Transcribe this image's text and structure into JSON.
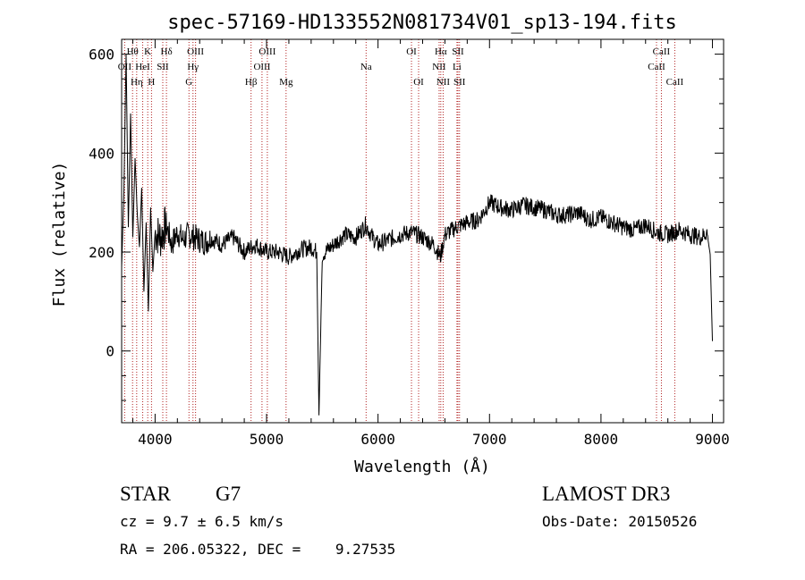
{
  "chart_data": {
    "type": "line",
    "title": "spec-57169-HD133552N081734V01_sp13-194.fits",
    "xlabel": "Wavelength (Å)",
    "ylabel": "Flux (relative)",
    "xlim": [
      3700,
      9100
    ],
    "ylim": [
      -145,
      630
    ],
    "xticks": [
      4000,
      5000,
      6000,
      7000,
      8000,
      9000
    ],
    "yticks": [
      0,
      200,
      400,
      600
    ],
    "grid": false,
    "legend": "none",
    "line_color": "#000000",
    "marker_color": "#b22222",
    "series": [
      {
        "name": "flux",
        "x": [
          3700,
          3720,
          3740,
          3760,
          3780,
          3800,
          3820,
          3840,
          3860,
          3880,
          3900,
          3920,
          3940,
          3960,
          3980,
          4000,
          4050,
          4100,
          4150,
          4200,
          4250,
          4300,
          4350,
          4400,
          4450,
          4500,
          4600,
          4700,
          4800,
          4860,
          4900,
          5000,
          5100,
          5200,
          5300,
          5400,
          5450,
          5470,
          5500,
          5600,
          5700,
          5800,
          5890,
          5950,
          6000,
          6100,
          6200,
          6300,
          6400,
          6500,
          6560,
          6600,
          6700,
          6800,
          6900,
          7000,
          7100,
          7200,
          7300,
          7400,
          7500,
          7600,
          7700,
          7800,
          7900,
          8000,
          8100,
          8200,
          8300,
          8400,
          8500,
          8600,
          8700,
          8800,
          8900,
          8950,
          8980,
          9000
        ],
        "y": [
          170,
          320,
          600,
          250,
          480,
          230,
          390,
          280,
          210,
          330,
          120,
          260,
          80,
          290,
          160,
          240,
          230,
          255,
          215,
          240,
          225,
          235,
          230,
          225,
          220,
          228,
          215,
          230,
          200,
          210,
          215,
          200,
          200,
          190,
          205,
          210,
          200,
          -130,
          195,
          215,
          235,
          230,
          255,
          230,
          215,
          225,
          235,
          240,
          230,
          215,
          190,
          235,
          250,
          260,
          265,
          300,
          290,
          285,
          295,
          290,
          285,
          275,
          275,
          280,
          265,
          270,
          260,
          250,
          245,
          255,
          240,
          235,
          245,
          235,
          230,
          240,
          195,
          20
        ]
      }
    ],
    "lines": [
      {
        "label": "OII",
        "wavelength": 3727,
        "row": 2
      },
      {
        "label": "Hθ",
        "wavelength": 3798,
        "row": 1
      },
      {
        "label": "Hη",
        "wavelength": 3835,
        "row": 3
      },
      {
        "label": "HeI",
        "wavelength": 3889,
        "row": 2
      },
      {
        "label": "K",
        "wavelength": 3934,
        "row": 1
      },
      {
        "label": "H",
        "wavelength": 3968,
        "row": 3
      },
      {
        "label": "SII",
        "wavelength": 4069,
        "row": 2
      },
      {
        "label": "Hδ",
        "wavelength": 4102,
        "row": 1
      },
      {
        "label": "G",
        "wavelength": 4304,
        "row": 3
      },
      {
        "label": "Hγ",
        "wavelength": 4340,
        "row": 2
      },
      {
        "label": "OIII",
        "wavelength": 4363,
        "row": 1
      },
      {
        "label": "Hβ",
        "wavelength": 4861,
        "row": 3
      },
      {
        "label": "OIII",
        "wavelength": 4959,
        "row": 2
      },
      {
        "label": "OIII",
        "wavelength": 5007,
        "row": 1
      },
      {
        "label": "Mg",
        "wavelength": 5175,
        "row": 3
      },
      {
        "label": "Na",
        "wavelength": 5893,
        "row": 2
      },
      {
        "label": "OI",
        "wavelength": 6300,
        "row": 1
      },
      {
        "label": "OI",
        "wavelength": 6364,
        "row": 3
      },
      {
        "label": "NII",
        "wavelength": 6548,
        "row": 2
      },
      {
        "label": "Hα",
        "wavelength": 6563,
        "row": 1
      },
      {
        "label": "NII",
        "wavelength": 6584,
        "row": 3
      },
      {
        "label": "Li",
        "wavelength": 6708,
        "row": 2
      },
      {
        "label": "SII",
        "wavelength": 6717,
        "row": 1
      },
      {
        "label": "SII",
        "wavelength": 6731,
        "row": 3
      },
      {
        "label": "CaII",
        "wavelength": 8498,
        "row": 2
      },
      {
        "label": "CaII",
        "wavelength": 8542,
        "row": 1
      },
      {
        "label": "CaII",
        "wavelength": 8662,
        "row": 3
      }
    ]
  },
  "info": {
    "object_class": "STAR",
    "subclass": "G7",
    "survey": "LAMOST DR3",
    "cz": "cz = 9.7 ± 6.5 km/s",
    "obs_date": "Obs-Date: 20150526",
    "coords": "RA = 206.05322, DEC =    9.27535"
  }
}
